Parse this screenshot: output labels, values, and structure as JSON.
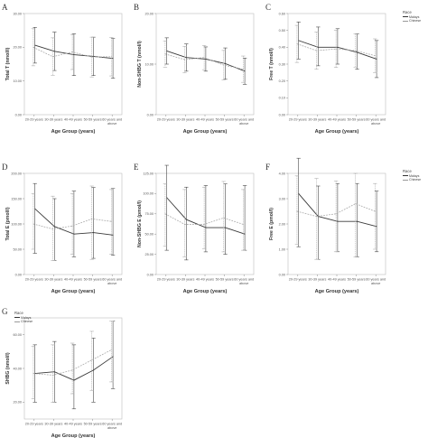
{
  "chart_data": [
    {
      "panel_label": "A",
      "type": "line",
      "categories": [
        "20-29 years",
        "30-39 years",
        "40-49 years",
        "50-59 years",
        "60 years and above"
      ],
      "ylabel": "Total T (nmol/l)",
      "xlabel": "Age Group (years)",
      "ylim": [
        0,
        30
      ],
      "yticks": [
        "0.00",
        "10.00",
        "20.00",
        "30.00"
      ],
      "series": [
        {
          "name": "Malays",
          "values": [
            20.6,
            18.8,
            17.8,
            17.3,
            16.7
          ],
          "lower": [
            15.3,
            13.1,
            11.6,
            11.6,
            10.8
          ],
          "upper": [
            25.9,
            24.5,
            24.0,
            23.0,
            22.6
          ]
        },
        {
          "name": "Chinese",
          "values": [
            20.0,
            17.2,
            18.6,
            17.1,
            17.2
          ],
          "lower": [
            14.5,
            11.6,
            13.4,
            11.2,
            11.5
          ],
          "upper": [
            25.5,
            22.8,
            23.8,
            23.0,
            22.9
          ]
        }
      ]
    },
    {
      "panel_label": "B",
      "type": "line",
      "categories": [
        "20-29 years",
        "30-39 years",
        "40-49 years",
        "50-59 years",
        "60 years and above"
      ],
      "ylabel": "Non-SHBG T (nmol/l)",
      "xlabel": "Age Group (years)",
      "ylim": [
        0,
        20
      ],
      "yticks": [
        "0.00",
        "10.00",
        "20.00"
      ],
      "series": [
        {
          "name": "Malays",
          "values": [
            12.6,
            11.3,
            11.0,
            10.1,
            8.6
          ],
          "lower": [
            10.0,
            8.6,
            8.6,
            7.0,
            6.0
          ],
          "upper": [
            15.2,
            14.0,
            13.4,
            13.2,
            11.2
          ]
        },
        {
          "name": "Chinese",
          "values": [
            12.0,
            10.9,
            11.3,
            9.8,
            9.0
          ],
          "lower": [
            9.4,
            8.3,
            8.9,
            6.9,
            6.4
          ],
          "upper": [
            14.6,
            13.5,
            13.7,
            12.7,
            11.6
          ]
        }
      ]
    },
    {
      "panel_label": "C",
      "type": "line",
      "categories": [
        "20-29 years",
        "30-39 years",
        "40-49 years",
        "50-59 years",
        "60 years and above"
      ],
      "ylabel": "Free T (nmol/l)",
      "xlabel": "Age Group (years)",
      "ylim": [
        0,
        0.6
      ],
      "yticks": [
        "0.00",
        "0.10",
        "0.20",
        "0.30",
        "0.40",
        "0.50",
        "0.60"
      ],
      "legend": {
        "title": "Race",
        "entries": [
          "Malays",
          "Chinese"
        ],
        "position": "top-right"
      },
      "series": [
        {
          "name": "Malays",
          "values": [
            0.44,
            0.4,
            0.4,
            0.37,
            0.33
          ],
          "lower": [
            0.33,
            0.29,
            0.3,
            0.27,
            0.22
          ],
          "upper": [
            0.55,
            0.52,
            0.51,
            0.48,
            0.44
          ]
        },
        {
          "name": "Chinese",
          "values": [
            0.42,
            0.38,
            0.39,
            0.38,
            0.35
          ],
          "lower": [
            0.31,
            0.27,
            0.28,
            0.28,
            0.25
          ],
          "upper": [
            0.53,
            0.49,
            0.5,
            0.48,
            0.45
          ]
        }
      ]
    },
    {
      "panel_label": "D",
      "type": "line",
      "categories": [
        "20-29 years",
        "30-39 years",
        "40-49 years",
        "50-59 years",
        "60 years and above"
      ],
      "ylabel": "Total E (pmol/l)",
      "xlabel": "Age Group (years)",
      "ylim": [
        0,
        200
      ],
      "yticks": [
        "0.00",
        "50.00",
        "100.00",
        "150.00",
        "200.00"
      ],
      "series": [
        {
          "name": "Malays",
          "values": [
            130,
            95,
            80,
            83,
            78
          ],
          "lower": [
            42,
            28,
            35,
            32,
            38
          ],
          "upper": [
            180,
            150,
            165,
            172,
            170
          ]
        },
        {
          "name": "Chinese",
          "values": [
            100,
            90,
            96,
            110,
            105
          ],
          "lower": [
            50,
            28,
            40,
            30,
            40
          ],
          "upper": [
            160,
            155,
            160,
            175,
            168
          ]
        }
      ]
    },
    {
      "panel_label": "E",
      "type": "line",
      "categories": [
        "20-29 years",
        "30-39 years",
        "40-49 years",
        "50-59 years",
        "60 years and above"
      ],
      "ylabel": "Non-SHBG E (pmol/l)",
      "xlabel": "Age Group (years)",
      "ylim": [
        0,
        125
      ],
      "yticks": [
        "0.00",
        "25.00",
        "50.00",
        "75.00",
        "100.00",
        "125.00"
      ],
      "series": [
        {
          "name": "Malays",
          "values": [
            95,
            68,
            58,
            58,
            50
          ],
          "lower": [
            30,
            18,
            28,
            25,
            30
          ],
          "upper": [
            135,
            108,
            110,
            112,
            110
          ]
        },
        {
          "name": "Chinese",
          "values": [
            75,
            62,
            62,
            70,
            62
          ],
          "lower": [
            35,
            22,
            32,
            28,
            30
          ],
          "upper": [
            112,
            105,
            108,
            115,
            105
          ]
        }
      ]
    },
    {
      "panel_label": "F",
      "type": "line",
      "categories": [
        "20-29 years",
        "30-39 years",
        "40-49 years",
        "50-59 years",
        "60 years and above"
      ],
      "ylabel": "Free E (pmol/l)",
      "xlabel": "Age Group (years)",
      "ylim": [
        0,
        4
      ],
      "yticks": [
        "0.00",
        "1.00",
        "2.00",
        "3.00",
        "4.00"
      ],
      "legend": {
        "title": "Race",
        "entries": [
          "Malays",
          "Chinese"
        ],
        "position": "top-right"
      },
      "series": [
        {
          "name": "Malays",
          "values": [
            3.2,
            2.3,
            2.1,
            2.1,
            1.9
          ],
          "lower": [
            1.1,
            0.6,
            0.9,
            0.7,
            0.9
          ],
          "upper": [
            4.6,
            3.5,
            3.6,
            3.6,
            3.3
          ]
        },
        {
          "name": "Chinese",
          "values": [
            2.5,
            2.3,
            2.4,
            2.8,
            2.5
          ],
          "lower": [
            1.2,
            0.6,
            0.9,
            0.7,
            1.0
          ],
          "upper": [
            3.9,
            3.8,
            3.7,
            4.0,
            3.6
          ]
        }
      ]
    },
    {
      "panel_label": "G",
      "type": "line",
      "categories": [
        "20-29 years",
        "30-39 years",
        "40-49 years",
        "50-59 years",
        "60 years and above"
      ],
      "ylabel": "SHBG (nmol/l)",
      "xlabel": "Age Group (years)",
      "ylim": [
        10,
        70
      ],
      "yticks": [
        "20.00",
        "40.00",
        "60.00"
      ],
      "legend": {
        "title": "Race",
        "entries": [
          "Malays",
          "Chinese"
        ],
        "position": "top-left"
      },
      "series": [
        {
          "name": "Malays",
          "values": [
            37,
            38,
            33,
            39,
            47
          ],
          "lower": [
            20,
            20,
            16,
            20,
            28
          ],
          "upper": [
            54,
            56,
            54,
            58,
            68
          ]
        },
        {
          "name": "Chinese",
          "values": [
            37,
            36,
            39,
            45,
            51
          ],
          "lower": [
            22,
            20,
            25,
            27,
            32
          ],
          "upper": [
            53,
            54,
            55,
            62,
            68
          ]
        }
      ]
    }
  ],
  "colors": {
    "malays": "#3a3a3a",
    "chinese": "#a8a8a8"
  }
}
